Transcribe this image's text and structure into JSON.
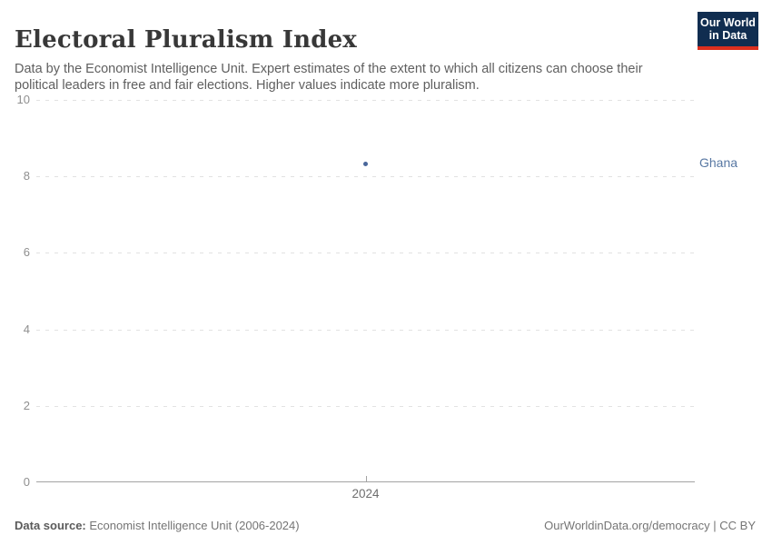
{
  "header": {
    "title": "Electoral Pluralism Index",
    "subtitle": "Data by the Economist Intelligence Unit. Expert estimates of the extent to which all citizens can choose their political leaders in free and fair elections. Higher values indicate more pluralism.",
    "logo": {
      "line1": "Our World",
      "line2": "in Data",
      "bg_color": "#102d50",
      "accent_color": "#dc2f1e"
    }
  },
  "chart_data": {
    "type": "scatter",
    "title": "Electoral Pluralism Index",
    "series": [
      {
        "name": "Ghana",
        "x": [
          2024
        ],
        "values": [
          8.33
        ],
        "color": "#4a679b",
        "label_color": "#5878a3"
      }
    ],
    "x_tick_labels": [
      "2024"
    ],
    "y_ticks": [
      0,
      2,
      4,
      6,
      8,
      10
    ],
    "ylim": [
      0,
      10
    ],
    "grid": "horizontal-dashed",
    "legend_position": "right-of-point"
  },
  "footer": {
    "source_label": "Data source:",
    "source_text": " Economist Intelligence Unit (2006-2024)",
    "credit": "OurWorldinData.org/democracy | CC BY"
  }
}
